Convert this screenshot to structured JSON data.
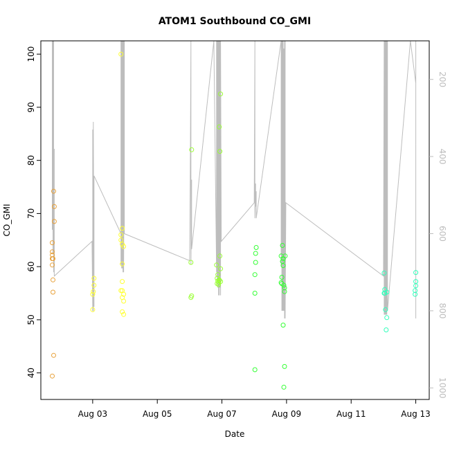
{
  "chart_data": {
    "type": "scatter",
    "title": "ATOM1 Southbound CO_GMI",
    "xlabel": "Date",
    "ylabel": "CO_GMI",
    "x_ticks": [
      {
        "label": "Aug 03",
        "day": 3
      },
      {
        "label": "Aug 05",
        "day": 5
      },
      {
        "label": "Aug 07",
        "day": 7
      },
      {
        "label": "Aug 09",
        "day": 9
      },
      {
        "label": "Aug 11",
        "day": 11
      },
      {
        "label": "Aug 13",
        "day": 13
      }
    ],
    "xlim": [
      "Aug 01 09:30",
      "Aug 13 10:00"
    ],
    "ylim": [
      35,
      102.5
    ],
    "y_ticks": [
      40,
      50,
      60,
      70,
      80,
      90,
      100
    ],
    "right_axis": {
      "ticks": [
        200,
        400,
        600,
        800,
        1000
      ],
      "lim": [
        1030,
        100
      ],
      "color": "#bdbdbd"
    },
    "series": [
      {
        "color": "#e8a13a",
        "points": [
          [
            "Aug 01 18:00",
            62.8
          ],
          [
            "Aug 01 18:00",
            62.2
          ],
          [
            "Aug 01 18:00",
            61.5
          ],
          [
            "Aug 01 18:00",
            60.3
          ],
          [
            "Aug 01 18:00",
            64.5
          ],
          [
            "Aug 01 18:30",
            57.5
          ],
          [
            "Aug 01 18:30",
            55.2
          ],
          [
            "Aug 01 18:30",
            61.5
          ],
          [
            "Aug 01 18:00",
            39.4
          ],
          [
            "Aug 01 19:00",
            43.3
          ],
          [
            "Aug 01 19:00",
            74.2
          ],
          [
            "Aug 01 19:30",
            71.3
          ],
          [
            "Aug 01 19:30",
            68.5
          ]
        ]
      },
      {
        "color": "#ffff33",
        "points": [
          [
            "Aug 03 00:00",
            51.9
          ],
          [
            "Aug 03 00:00",
            54.8
          ],
          [
            "Aug 03 00:30",
            55.3
          ],
          [
            "Aug 03 01:00",
            56.5
          ],
          [
            "Aug 03 01:00",
            57.8
          ],
          [
            "Aug 03 21:00",
            100.0
          ],
          [
            "Aug 03 21:00",
            66.0
          ],
          [
            "Aug 03 21:00",
            65.0
          ],
          [
            "Aug 03 21:00",
            55.5
          ],
          [
            "Aug 03 22:00",
            67.2
          ],
          [
            "Aug 03 22:00",
            64.2
          ],
          [
            "Aug 03 22:00",
            60.5
          ],
          [
            "Aug 03 22:00",
            57.2
          ],
          [
            "Aug 03 22:00",
            55.5
          ],
          [
            "Aug 03 22:00",
            54.2
          ],
          [
            "Aug 03 22:00",
            51.5
          ],
          [
            "Aug 03 23:00",
            54.8
          ],
          [
            "Aug 03 23:00",
            53.5
          ],
          [
            "Aug 03 23:00",
            51.0
          ],
          [
            "Aug 03 23:00",
            63.8
          ]
        ]
      },
      {
        "color": "#99ff33",
        "points": [
          [
            "Aug 06 01:00",
            60.8
          ],
          [
            "Aug 06 01:00",
            54.2
          ],
          [
            "Aug 06 01:30",
            54.5
          ],
          [
            "Aug 06 01:30",
            82.0
          ],
          [
            "Aug 06 20:00",
            60.3
          ],
          [
            "Aug 06 20:30",
            57.8
          ],
          [
            "Aug 06 20:30",
            56.8
          ],
          [
            "Aug 06 21:00",
            58.5
          ],
          [
            "Aug 06 21:00",
            57.3
          ],
          [
            "Aug 06 21:30",
            57.0
          ],
          [
            "Aug 06 21:30",
            56.6
          ],
          [
            "Aug 06 22:00",
            57.5
          ],
          [
            "Aug 06 22:00",
            57.4
          ],
          [
            "Aug 06 22:00",
            86.3
          ],
          [
            "Aug 06 22:30",
            81.7
          ],
          [
            "Aug 06 22:30",
            62.0
          ],
          [
            "Aug 06 23:00",
            92.5
          ],
          [
            "Aug 06 23:00",
            59.6
          ],
          [
            "Aug 06 23:00",
            57.2
          ]
        ]
      },
      {
        "color": "#33ff33",
        "points": [
          [
            "Aug 08 00:30",
            55.0
          ],
          [
            "Aug 08 00:30",
            40.6
          ],
          [
            "Aug 08 00:30",
            58.5
          ],
          [
            "Aug 08 01:00",
            60.8
          ],
          [
            "Aug 08 01:00",
            62.5
          ],
          [
            "Aug 08 01:30",
            63.6
          ],
          [
            "Aug 08 20:00",
            62.0
          ],
          [
            "Aug 08 20:00",
            57.0
          ],
          [
            "Aug 08 20:30",
            56.8
          ],
          [
            "Aug 08 20:30",
            58.0
          ],
          [
            "Aug 08 21:00",
            61.0
          ],
          [
            "Aug 08 21:00",
            64.0
          ],
          [
            "Aug 08 21:30",
            49.0
          ],
          [
            "Aug 08 21:30",
            60.2
          ],
          [
            "Aug 08 21:30",
            61.5
          ],
          [
            "Aug 08 22:00",
            37.3
          ],
          [
            "Aug 08 22:00",
            56.5
          ],
          [
            "Aug 08 22:30",
            55.3
          ],
          [
            "Aug 08 22:30",
            56.0
          ],
          [
            "Aug 08 22:30",
            41.2
          ],
          [
            "Aug 08 23:00",
            62.0
          ]
        ]
      },
      {
        "color": "#33ffbb",
        "points": [
          [
            "Aug 12 00:30",
            55.0
          ],
          [
            "Aug 12 00:30",
            58.8
          ],
          [
            "Aug 12 01:00",
            55.0
          ],
          [
            "Aug 12 01:00",
            55.7
          ],
          [
            "Aug 12 01:30",
            51.9
          ],
          [
            "Aug 12 02:00",
            48.1
          ],
          [
            "Aug 12 02:30",
            50.4
          ],
          [
            "Aug 12 02:30",
            55.2
          ],
          [
            "Aug 12 23:30",
            54.8
          ],
          [
            "Aug 12 23:30",
            55.5
          ],
          [
            "Aug 13 00:00",
            57.2
          ],
          [
            "Aug 13 00:00",
            58.9
          ],
          [
            "Aug 13 00:00",
            56.4
          ]
        ]
      }
    ],
    "secondary_line": {
      "color": "#bdbdbd",
      "points": [
        [
          "Aug 01 18:00",
          100
        ],
        [
          "Aug 01 18:00",
          590
        ],
        [
          "Aug 01 18:30",
          100
        ],
        [
          "Aug 01 18:30",
          650
        ],
        [
          "Aug 01 19:00",
          100
        ],
        [
          "Aug 01 19:00",
          700
        ],
        [
          "Aug 01 19:30",
          380
        ],
        [
          "Aug 01 19:30",
          710
        ],
        [
          "Aug 02 23:30",
          620
        ],
        [
          "Aug 03 00:00",
          790
        ],
        [
          "Aug 03 00:00",
          330
        ],
        [
          "Aug 03 00:00",
          800
        ],
        [
          "Aug 03 00:30",
          800
        ],
        [
          "Aug 03 00:30",
          310
        ],
        [
          "Aug 03 01:00",
          790
        ],
        [
          "Aug 03 01:00",
          450
        ],
        [
          "Aug 03 21:00",
          600
        ],
        [
          "Aug 03 21:00",
          100
        ],
        [
          "Aug 03 21:00",
          680
        ],
        [
          "Aug 03 21:30",
          100
        ],
        [
          "Aug 03 21:30",
          690
        ],
        [
          "Aug 03 22:00",
          100
        ],
        [
          "Aug 03 22:00",
          690
        ],
        [
          "Aug 03 22:30",
          100
        ],
        [
          "Aug 03 22:30",
          700
        ],
        [
          "Aug 03 23:00",
          100
        ],
        [
          "Aug 03 23:00",
          700
        ],
        [
          "Aug 03 23:30",
          100
        ],
        [
          "Aug 03 23:30",
          600
        ],
        [
          "Aug 06 00:00",
          670
        ],
        [
          "Aug 06 00:30",
          460
        ],
        [
          "Aug 06 01:00",
          100
        ],
        [
          "Aug 06 01:00",
          680
        ],
        [
          "Aug 06 01:30",
          460
        ],
        [
          "Aug 06 01:30",
          640
        ],
        [
          "Aug 06 18:00",
          100
        ],
        [
          "Aug 06 20:00",
          700
        ],
        [
          "Aug 06 20:00",
          100
        ],
        [
          "Aug 06 20:30",
          720
        ],
        [
          "Aug 06 20:30",
          100
        ],
        [
          "Aug 06 21:00",
          740
        ],
        [
          "Aug 06 21:00",
          100
        ],
        [
          "Aug 06 21:30",
          760
        ],
        [
          "Aug 06 21:30",
          100
        ],
        [
          "Aug 06 22:00",
          760
        ],
        [
          "Aug 06 22:00",
          100
        ],
        [
          "Aug 06 22:30",
          740
        ],
        [
          "Aug 06 22:30",
          100
        ],
        [
          "Aug 06 23:00",
          760
        ],
        [
          "Aug 06 23:00",
          100
        ],
        [
          "Aug 06 23:30",
          620
        ],
        [
          "Aug 08 00:00",
          520
        ],
        [
          "Aug 08 00:30",
          100
        ],
        [
          "Aug 08 00:30",
          560
        ],
        [
          "Aug 08 01:00",
          470
        ],
        [
          "Aug 08 01:00",
          530
        ],
        [
          "Aug 08 01:30",
          490
        ],
        [
          "Aug 08 01:30",
          560
        ],
        [
          "Aug 08 20:00",
          100
        ],
        [
          "Aug 08 20:00",
          680
        ],
        [
          "Aug 08 20:30",
          100
        ],
        [
          "Aug 08 20:30",
          800
        ],
        [
          "Aug 08 21:00",
          100
        ],
        [
          "Aug 08 21:00",
          800
        ],
        [
          "Aug 08 21:30",
          100
        ],
        [
          "Aug 08 21:30",
          800
        ],
        [
          "Aug 08 22:00",
          120
        ],
        [
          "Aug 08 22:00",
          800
        ],
        [
          "Aug 08 22:30",
          100
        ],
        [
          "Aug 08 22:30",
          820
        ],
        [
          "Aug 08 23:00",
          100
        ],
        [
          "Aug 08 23:00",
          820
        ],
        [
          "Aug 08 23:30",
          520
        ],
        [
          "Aug 12 00:00",
          710
        ],
        [
          "Aug 12 00:30",
          100
        ],
        [
          "Aug 12 00:30",
          810
        ],
        [
          "Aug 12 01:00",
          100
        ],
        [
          "Aug 12 01:00",
          810
        ],
        [
          "Aug 12 01:30",
          100
        ],
        [
          "Aug 12 01:30",
          810
        ],
        [
          "Aug 12 02:00",
          100
        ],
        [
          "Aug 12 02:00",
          810
        ],
        [
          "Aug 12 02:30",
          100
        ],
        [
          "Aug 12 02:30",
          810
        ],
        [
          "Aug 12 03:00",
          100
        ],
        [
          "Aug 12 03:00",
          800
        ],
        [
          "Aug 12 20:00",
          100
        ],
        [
          "Aug 13 00:00",
          210
        ],
        [
          "Aug 13 00:00",
          820
        ],
        [
          "Aug 13 00:00",
          100
        ]
      ]
    },
    "grid": false,
    "legend": "none"
  }
}
